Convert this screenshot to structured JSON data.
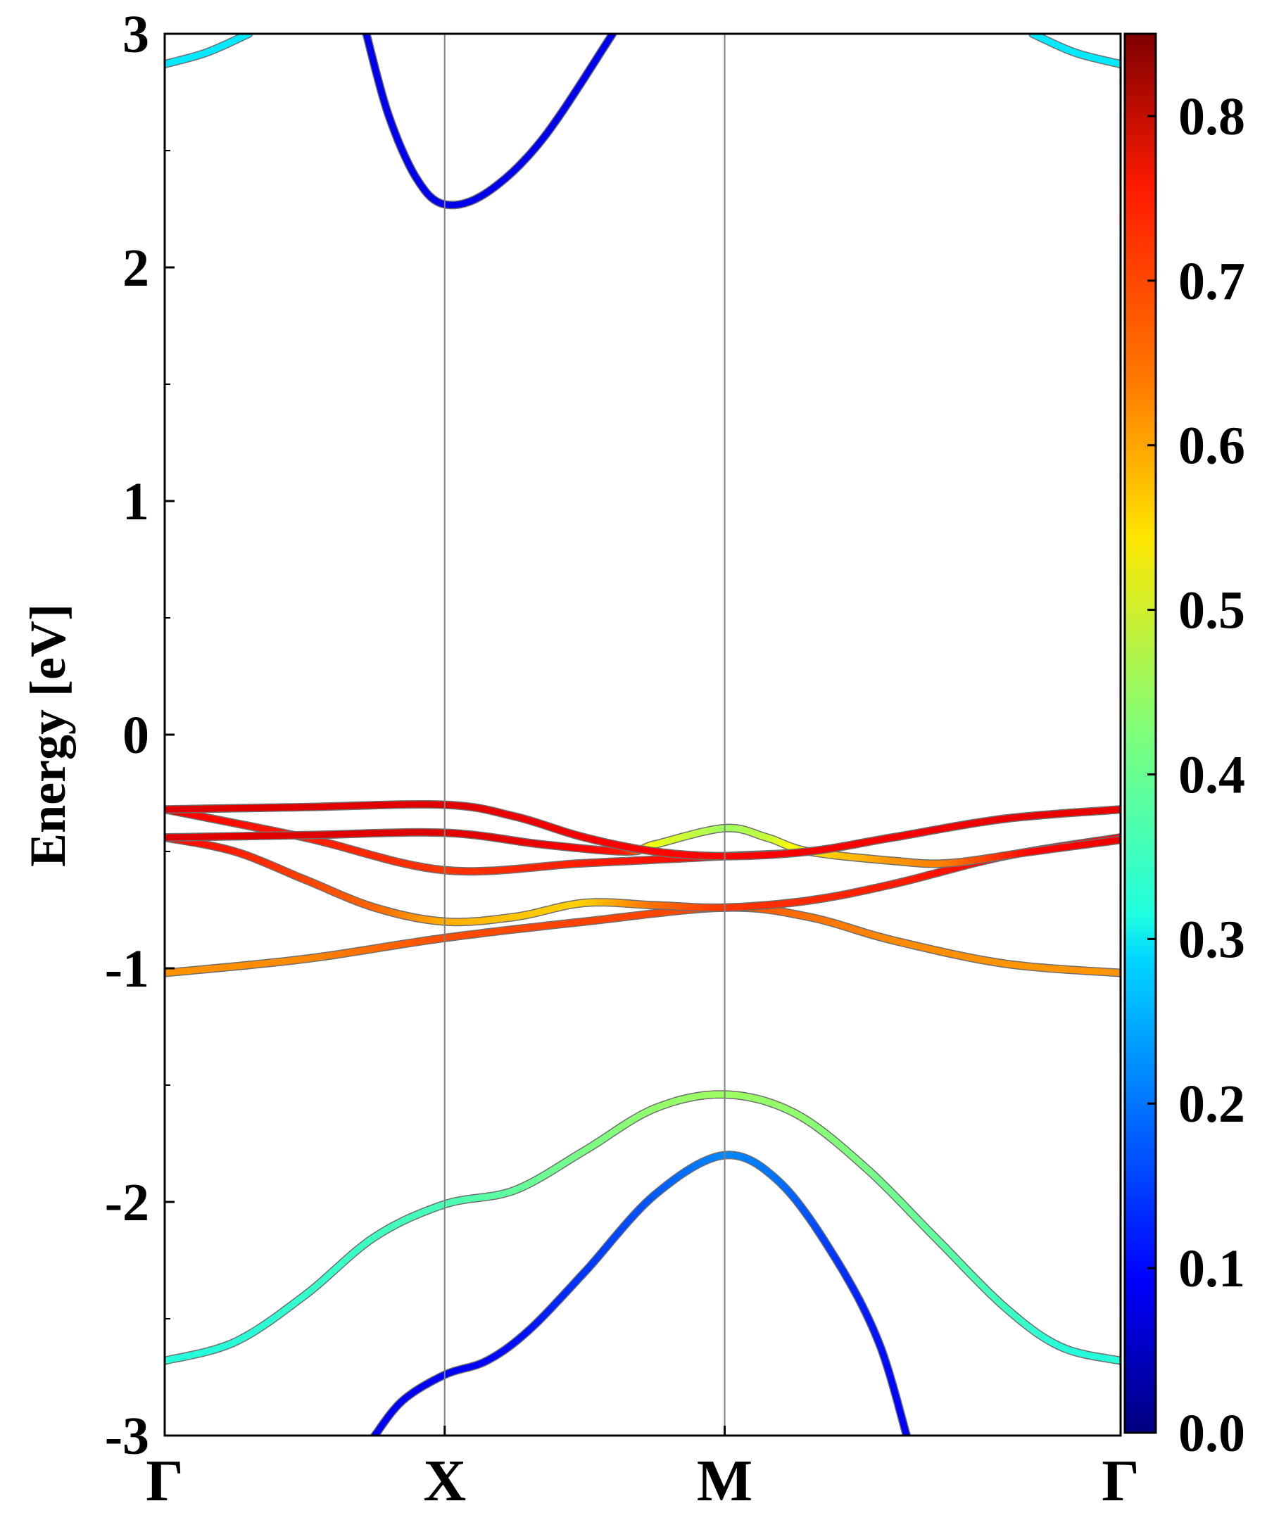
{
  "chart_data": {
    "type": "line",
    "title": "",
    "ylabel": "Energy [eV]",
    "xlabel": "",
    "ylim": [
      -3,
      3
    ],
    "y_ticks": [
      -3,
      -2,
      -1,
      0,
      1,
      2,
      3
    ],
    "y_minor_step": 0.5,
    "x_ticks": [
      {
        "label": "Γ",
        "k": 0
      },
      {
        "label": "X",
        "k": 1
      },
      {
        "label": "M",
        "k": 2
      },
      {
        "label": "Γ",
        "k": 3.414
      }
    ],
    "high_symmetry_lines": [
      "X",
      "M"
    ],
    "colorbar": {
      "colormap": "jet",
      "range": [
        0.0,
        0.85
      ],
      "ticks": [
        "0.0",
        "0.1",
        "0.2",
        "0.3",
        "0.4",
        "0.5",
        "0.6",
        "0.7",
        "0.8"
      ]
    },
    "series": [
      {
        "points": [
          [
            0,
            -2.68,
            0.35
          ],
          [
            0.25,
            -2.6,
            0.35
          ],
          [
            0.5,
            -2.4,
            0.36
          ],
          [
            0.75,
            -2.15,
            0.37
          ],
          [
            1,
            -2.01,
            0.38
          ],
          [
            1.25,
            -1.95,
            0.4
          ],
          [
            1.5,
            -1.78,
            0.42
          ],
          [
            1.75,
            -1.6,
            0.44
          ],
          [
            2,
            -1.54,
            0.45
          ],
          [
            2.25,
            -1.62,
            0.44
          ],
          [
            2.5,
            -1.85,
            0.42
          ],
          [
            2.75,
            -2.15,
            0.4
          ],
          [
            3,
            -2.45,
            0.37
          ],
          [
            3.2,
            -2.62,
            0.35
          ],
          [
            3.414,
            -2.68,
            0.35
          ]
        ]
      },
      {
        "points": [
          [
            0.75,
            -3.0,
            0.1
          ],
          [
            0.85,
            -2.85,
            0.1
          ],
          [
            1,
            -2.74,
            0.1
          ],
          [
            1.15,
            -2.68,
            0.11
          ],
          [
            1.3,
            -2.55,
            0.12
          ],
          [
            1.5,
            -2.3,
            0.15
          ],
          [
            1.75,
            -1.97,
            0.18
          ],
          [
            2,
            -1.8,
            0.22
          ],
          [
            2.2,
            -1.92,
            0.2
          ],
          [
            2.4,
            -2.25,
            0.15
          ],
          [
            2.55,
            -2.6,
            0.12
          ],
          [
            2.65,
            -3.0,
            0.1
          ]
        ]
      },
      {
        "points": [
          [
            0,
            -1.02,
            0.62
          ],
          [
            0.5,
            -0.96,
            0.63
          ],
          [
            1,
            -0.87,
            0.68
          ],
          [
            1.5,
            -0.8,
            0.69
          ],
          [
            2,
            -0.74,
            0.68
          ],
          [
            2.3,
            -0.78,
            0.65
          ],
          [
            2.6,
            -0.88,
            0.63
          ],
          [
            3,
            -0.98,
            0.62
          ],
          [
            3.414,
            -1.02,
            0.62
          ]
        ]
      },
      {
        "points": [
          [
            0,
            -0.44,
            0.74
          ],
          [
            0.25,
            -0.5,
            0.72
          ],
          [
            0.5,
            -0.62,
            0.69
          ],
          [
            0.75,
            -0.74,
            0.66
          ],
          [
            1,
            -0.8,
            0.6
          ],
          [
            1.25,
            -0.78,
            0.58
          ],
          [
            1.5,
            -0.72,
            0.57
          ],
          [
            1.75,
            -0.73,
            0.65
          ],
          [
            2,
            -0.74,
            0.7
          ],
          [
            2.3,
            -0.71,
            0.71
          ],
          [
            2.6,
            -0.64,
            0.72
          ],
          [
            3,
            -0.52,
            0.74
          ],
          [
            3.414,
            -0.44,
            0.75
          ]
        ]
      },
      {
        "points": [
          [
            0,
            -0.32,
            0.75
          ],
          [
            0.5,
            -0.44,
            0.72
          ],
          [
            1,
            -0.58,
            0.7
          ],
          [
            1.5,
            -0.55,
            0.72
          ],
          [
            2,
            -0.52,
            0.74
          ],
          [
            2.3,
            -0.5,
            0.75
          ],
          [
            2.6,
            -0.44,
            0.75
          ],
          [
            3,
            -0.36,
            0.76
          ],
          [
            3.414,
            -0.32,
            0.76
          ]
        ]
      },
      {
        "points": [
          [
            0,
            -0.44,
            0.77
          ],
          [
            0.5,
            -0.43,
            0.77
          ],
          [
            1,
            -0.42,
            0.77
          ],
          [
            1.35,
            -0.47,
            0.76
          ],
          [
            1.65,
            -0.5,
            0.72
          ],
          [
            1.75,
            -0.47,
            0.52
          ],
          [
            2,
            -0.4,
            0.45
          ],
          [
            2.15,
            -0.44,
            0.48
          ],
          [
            2.3,
            -0.5,
            0.55
          ],
          [
            2.6,
            -0.54,
            0.62
          ],
          [
            2.8,
            -0.55,
            0.64
          ],
          [
            3.1,
            -0.5,
            0.74
          ],
          [
            3.414,
            -0.45,
            0.76
          ]
        ]
      },
      {
        "points": [
          [
            0,
            -0.32,
            0.77
          ],
          [
            0.5,
            -0.31,
            0.77
          ],
          [
            1,
            -0.3,
            0.77
          ],
          [
            1.25,
            -0.35,
            0.76
          ],
          [
            1.5,
            -0.44,
            0.75
          ],
          [
            1.75,
            -0.5,
            0.74
          ],
          [
            2,
            -0.52,
            0.74
          ],
          [
            2.3,
            -0.5,
            0.75
          ],
          [
            2.6,
            -0.44,
            0.75
          ],
          [
            3,
            -0.36,
            0.76
          ],
          [
            3.414,
            -0.32,
            0.76
          ]
        ]
      },
      {
        "points": [
          [
            0,
            2.87,
            0.3
          ],
          [
            0.15,
            2.92,
            0.3
          ],
          [
            0.3,
            3.0,
            0.3
          ]
        ]
      },
      {
        "points": [
          [
            3.1,
            3.0,
            0.3
          ],
          [
            3.25,
            2.92,
            0.3
          ],
          [
            3.414,
            2.87,
            0.3
          ]
        ]
      },
      {
        "points": [
          [
            0.72,
            3.0,
            0.09
          ],
          [
            0.8,
            2.65,
            0.09
          ],
          [
            0.9,
            2.38,
            0.09
          ],
          [
            1,
            2.27,
            0.09
          ],
          [
            1.15,
            2.32,
            0.09
          ],
          [
            1.35,
            2.55,
            0.09
          ],
          [
            1.6,
            3.0,
            0.09
          ]
        ]
      }
    ]
  }
}
